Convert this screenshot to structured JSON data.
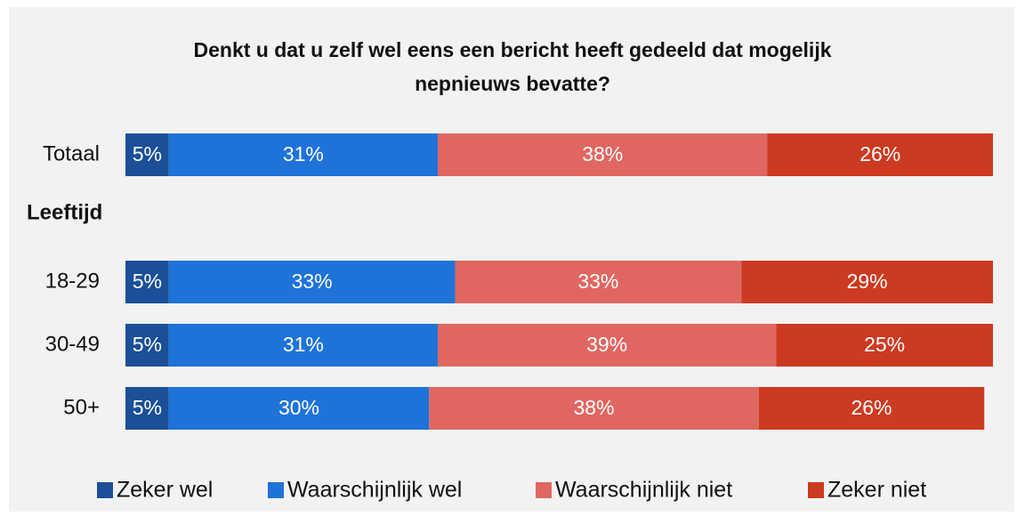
{
  "chart_data": {
    "type": "stacked-bar-horizontal",
    "title": "Denkt u dat u zelf wel eens een bericht heeft gedeeld dat mogelijk nepnieuws bevatte?",
    "categories": [
      "Totaal",
      "Leeftijd",
      "18-29",
      "30-49",
      "50+"
    ],
    "xlim": [
      0,
      100
    ],
    "series": [
      {
        "name": "Zeker wel",
        "color": "#1b4f98",
        "values": [
          5,
          null,
          5,
          5,
          5
        ],
        "value_labels": [
          "5%",
          null,
          "5%",
          "5%",
          "5%"
        ]
      },
      {
        "name": "Waarschijnlijk wel",
        "color": "#1f73d8",
        "values": [
          31,
          null,
          33,
          31,
          30
        ],
        "value_labels": [
          "31%",
          null,
          "33%",
          "31%",
          "30%"
        ]
      },
      {
        "name": "Waarschijnlijk niet",
        "color": "#e06761",
        "values": [
          38,
          null,
          33,
          39,
          38
        ],
        "value_labels": [
          "38%",
          null,
          "33%",
          "39%",
          "38%"
        ]
      },
      {
        "name": "Zeker niet",
        "color": "#cc3a21",
        "values": [
          26,
          null,
          29,
          25,
          26
        ],
        "value_labels": [
          "26%",
          null,
          "29%",
          "25%",
          "26%"
        ]
      }
    ],
    "legend": "bottom"
  }
}
